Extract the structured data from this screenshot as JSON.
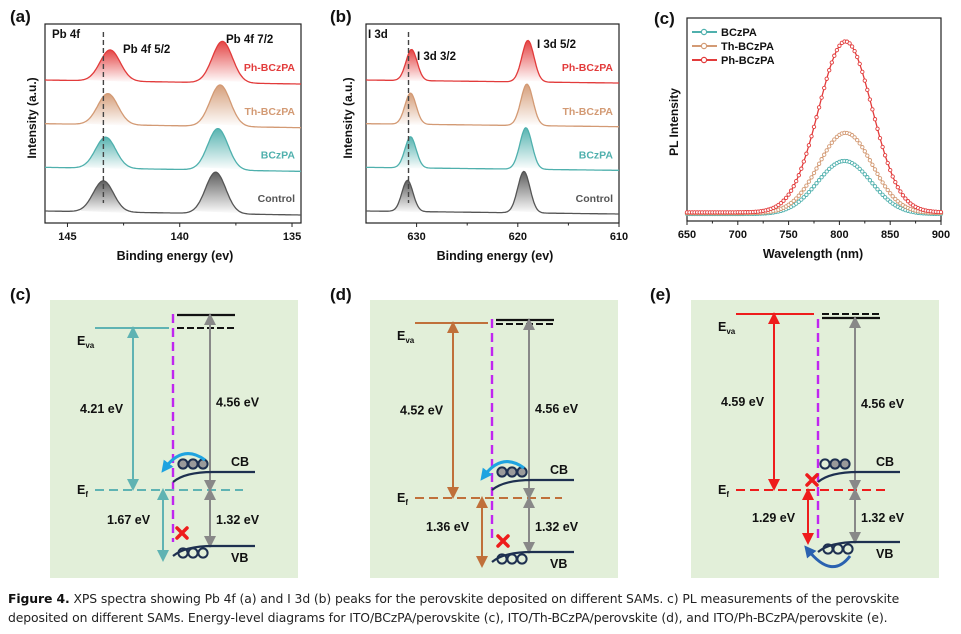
{
  "panels": {
    "a": {
      "label": "(a)",
      "element_label": "Pb 4f",
      "peak1_label": "Pb 4f 5/2",
      "peak2_label": "Pb 4f 7/2",
      "ylabel": "Intensity (a.u.)",
      "xlabel": "Binding energy (ev)"
    },
    "b": {
      "label": "(b)",
      "element_label": "I 3d",
      "peak1_label": "I 3d 3/2",
      "peak2_label": "I 3d 5/2",
      "ylabel": "Intensity (a.u.)",
      "xlabel": "Binding energy (ev)"
    },
    "c_pl": {
      "label": "(c)",
      "ylabel": "PL Intensity",
      "xlabel": "Wavelength (nm)"
    },
    "c_diagram": {
      "label": "(c)",
      "eva": "E",
      "eva_sub": "va",
      "ef": "E",
      "ef_sub": "f",
      "left_gap": "4.21 eV",
      "right_gap": "4.56 eV",
      "lower_left_gap": "1.67 eV",
      "lower_right_gap": "1.32 eV",
      "cb": "CB",
      "vb": "VB",
      "color": "#5fb3b3"
    },
    "d_diagram": {
      "label": "(d)",
      "eva": "E",
      "eva_sub": "va",
      "ef": "E",
      "ef_sub": "f",
      "left_gap": "4.52 eV",
      "right_gap": "4.56 eV",
      "lower_left_gap": "1.36 eV",
      "lower_right_gap": "1.32 eV",
      "cb": "CB",
      "vb": "VB",
      "color": "#c0703a"
    },
    "e_diagram": {
      "label": "(e)",
      "eva": "E",
      "eva_sub": "va",
      "ef": "E",
      "ef_sub": "f",
      "left_gap": "4.59 eV",
      "right_gap": "4.56 eV",
      "lower_left_gap": "1.29 eV",
      "lower_right_gap": "1.32 eV",
      "cb": "CB",
      "vb": "VB",
      "color": "#ee1c1c"
    }
  },
  "colors": {
    "BCzPA": "#4fb0ad",
    "Th-BCzPA": "#d39a74",
    "Ph-BCzPA": "#e23b3b",
    "Control": "#555555",
    "diagram_bg": "#e2efd9",
    "interface": "#c026f0"
  },
  "caption": {
    "figure_label": "Figure 4.",
    "text": "XPS spectra showing Pb 4f (a) and I 3d (b) peaks for the perovskite deposited on different SAMs. c) PL measurements of the perovskite deposited on different SAMs. Energy-level diagrams for ITO/BCzPA/perovskite (c), ITO/Th-BCzPA/perovskite (d), and ITO/Ph-BCzPA/perovskite (e)."
  },
  "chart_data": [
    {
      "type": "line",
      "title": "Pb 4f",
      "xlabel": "Binding energy (ev)",
      "ylabel": "Intensity (a.u.)",
      "xlim": [
        146,
        134.6
      ],
      "x_reversed": true,
      "xticks": [
        145,
        140,
        135
      ],
      "annotations": [
        "Pb 4f 5/2",
        "Pb 4f 7/2"
      ],
      "dashed_reference_x": 143.4,
      "series": [
        {
          "name": "Ph-BCzPA",
          "peaks": [
            {
              "x": 143.1,
              "rel_height": 0.75
            },
            {
              "x": 138.1,
              "rel_height": 1.0
            }
          ],
          "offset": 3
        },
        {
          "name": "Th-BCzPA",
          "peaks": [
            {
              "x": 143.2,
              "rel_height": 0.75
            },
            {
              "x": 138.2,
              "rel_height": 1.0
            }
          ],
          "offset": 2
        },
        {
          "name": "BCzPA",
          "peaks": [
            {
              "x": 143.3,
              "rel_height": 0.75
            },
            {
              "x": 138.3,
              "rel_height": 1.0
            }
          ],
          "offset": 1
        },
        {
          "name": "Control",
          "peaks": [
            {
              "x": 143.4,
              "rel_height": 0.75
            },
            {
              "x": 138.4,
              "rel_height": 1.0
            }
          ],
          "offset": 0
        }
      ]
    },
    {
      "type": "line",
      "title": "I 3d",
      "xlabel": "Binding energy (ev)",
      "ylabel": "Intensity (a.u.)",
      "xlim": [
        635,
        610
      ],
      "x_reversed": true,
      "xticks": [
        630,
        620,
        610
      ],
      "annotations": [
        "I 3d 3/2",
        "I 3d 5/2"
      ],
      "dashed_reference_x": 630.8,
      "series": [
        {
          "name": "Ph-BCzPA",
          "peaks": [
            {
              "x": 630.5,
              "rel_height": 0.75
            },
            {
              "x": 619.0,
              "rel_height": 1.0
            }
          ],
          "offset": 3
        },
        {
          "name": "Th-BCzPA",
          "peaks": [
            {
              "x": 630.6,
              "rel_height": 0.75
            },
            {
              "x": 619.1,
              "rel_height": 1.0
            }
          ],
          "offset": 2
        },
        {
          "name": "BCzPA",
          "peaks": [
            {
              "x": 630.6,
              "rel_height": 0.75
            },
            {
              "x": 619.2,
              "rel_height": 1.0
            }
          ],
          "offset": 1
        },
        {
          "name": "Control",
          "peaks": [
            {
              "x": 630.9,
              "rel_height": 0.75
            },
            {
              "x": 619.4,
              "rel_height": 1.0
            }
          ],
          "offset": 0
        }
      ]
    },
    {
      "type": "line",
      "title": "",
      "xlabel": "Wavelength (nm)",
      "ylabel": "PL Intensity",
      "xlim": [
        650,
        900
      ],
      "xticks": [
        650,
        700,
        750,
        800,
        850,
        900
      ],
      "legend": "top-left",
      "series": [
        {
          "name": "BCzPA",
          "peak_x": 805,
          "peak_rel": 0.31,
          "fwhm": 62
        },
        {
          "name": "Th-BCzPA",
          "peak_x": 806,
          "peak_rel": 0.47,
          "fwhm": 62
        },
        {
          "name": "Ph-BCzPA",
          "peak_x": 806,
          "peak_rel": 1.0,
          "fwhm": 62
        }
      ]
    }
  ]
}
